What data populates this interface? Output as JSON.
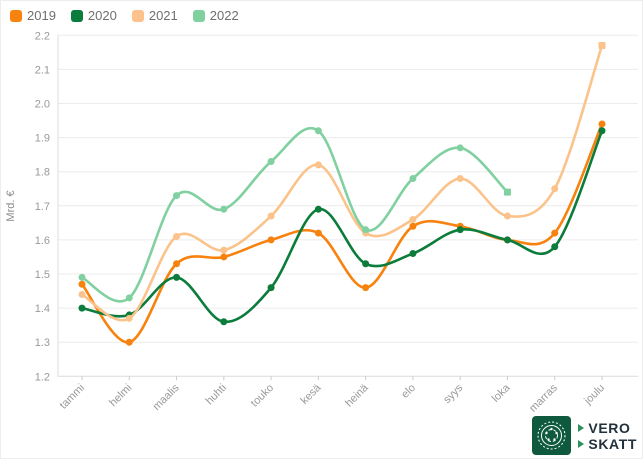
{
  "chart_data": {
    "type": "line",
    "categories": [
      "tammi",
      "helmi",
      "maalis",
      "huhti",
      "touko",
      "kesä",
      "heinä",
      "elo",
      "syys",
      "loka",
      "marras",
      "joulu"
    ],
    "series": [
      {
        "name": "2019",
        "color": "#f8820e",
        "end_marker": "circle",
        "values": [
          1.47,
          1.3,
          1.53,
          1.55,
          1.6,
          1.62,
          1.46,
          1.64,
          1.64,
          1.6,
          1.62,
          1.94
        ]
      },
      {
        "name": "2020",
        "color": "#0b7c3b",
        "end_marker": "circle",
        "values": [
          1.4,
          1.38,
          1.49,
          1.36,
          1.46,
          1.69,
          1.53,
          1.56,
          1.63,
          1.6,
          1.58,
          1.92
        ]
      },
      {
        "name": "2021",
        "color": "#fbc38b",
        "end_marker": "square",
        "values": [
          1.44,
          1.37,
          1.61,
          1.57,
          1.67,
          1.82,
          1.62,
          1.66,
          1.78,
          1.67,
          1.75,
          2.17
        ]
      },
      {
        "name": "2022",
        "color": "#80d0a0",
        "end_marker": "square",
        "values": [
          1.49,
          1.43,
          1.73,
          1.69,
          1.83,
          1.92,
          1.63,
          1.78,
          1.87,
          1.74,
          null,
          null
        ]
      }
    ],
    "title": "",
    "xlabel": "",
    "ylabel": "Mrd. €",
    "ylim": [
      1.2,
      2.2
    ],
    "ytick_step": 0.1,
    "grid": true,
    "legend_position": "top-left"
  },
  "style": {
    "grid_color": "#ececec",
    "axis_color": "#dcdcdc",
    "tick_color": "#cccccc",
    "tick_label_color": "#999999",
    "legend_label_color": "#6f6f6f"
  },
  "logo": {
    "line1": "VERO",
    "line2": "SKATT",
    "emblem_color": "#0f5a3e",
    "text_color": "#22313b",
    "triangle_color": "#2e8f5a"
  }
}
